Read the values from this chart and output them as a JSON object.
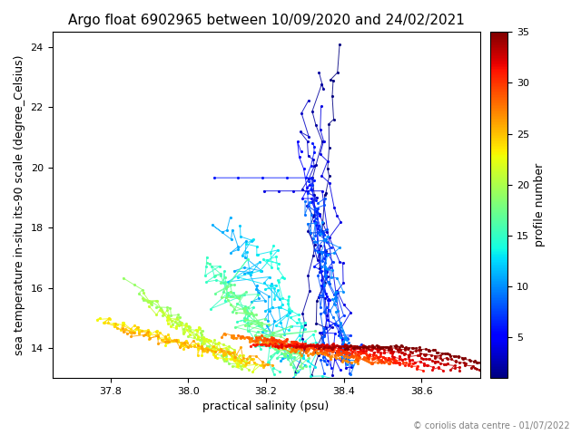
{
  "title": "Argo float 6902965 between 10/09/2020 and 24/02/2021",
  "xlabel": "practical salinity (psu)",
  "ylabel": "sea temperature in-situ its-90 scale (degree_Celsius)",
  "colorbar_label": "profile number",
  "copyright_text": "© coriolis data centre - 01/07/2022",
  "xlim": [
    37.65,
    38.75
  ],
  "ylim": [
    13.0,
    24.5
  ],
  "xticks": [
    37.8,
    38.0,
    38.2,
    38.4,
    38.6
  ],
  "yticks": [
    14,
    16,
    18,
    20,
    22,
    24
  ],
  "cmap": "jet",
  "vmin": 1,
  "vmax": 35,
  "colorbar_ticks": [
    5,
    10,
    15,
    20,
    25,
    30,
    35
  ],
  "n_profiles": 35,
  "background": "white"
}
